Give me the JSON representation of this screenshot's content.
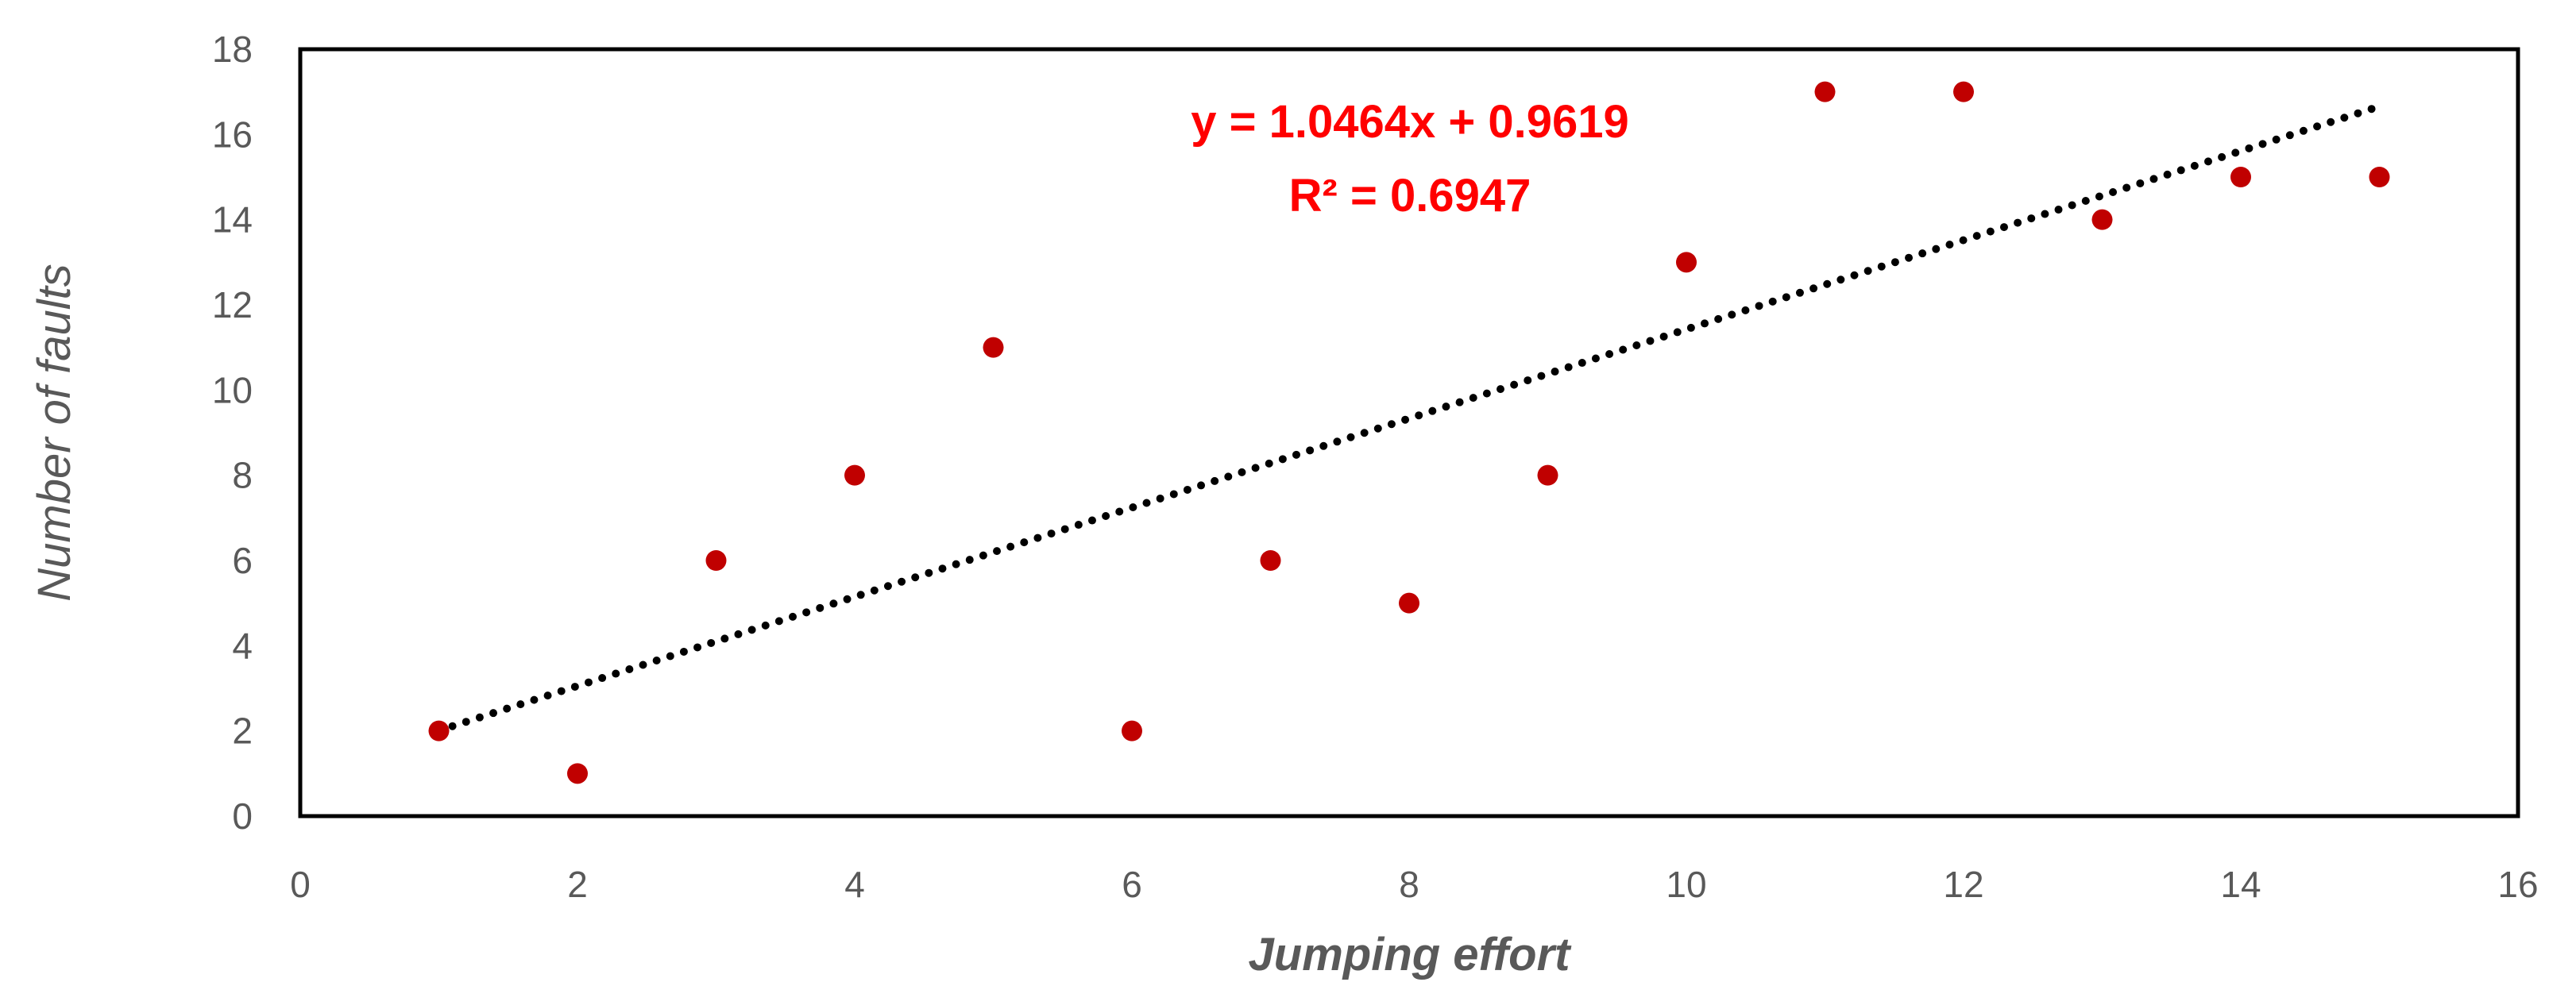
{
  "chart_data": {
    "type": "scatter",
    "title": "",
    "xlabel": "Jumping effort",
    "ylabel": "Number of faults",
    "xlim": [
      0,
      16
    ],
    "ylim": [
      0,
      18
    ],
    "xticks": [
      0,
      2,
      4,
      6,
      8,
      10,
      12,
      14,
      16
    ],
    "yticks": [
      0,
      2,
      4,
      6,
      8,
      10,
      12,
      14,
      16,
      18
    ],
    "grid": false,
    "series": [
      {
        "x": [
          1,
          2,
          3,
          4,
          5,
          6,
          7,
          8,
          9,
          10,
          11,
          12,
          13,
          14,
          15
        ],
        "y": [
          2,
          1,
          6,
          8,
          11,
          2,
          6,
          5,
          8,
          13,
          17,
          17,
          14,
          15,
          15
        ],
        "color": "#c00000"
      }
    ],
    "trendline": {
      "type": "linear",
      "slope": 1.0464,
      "intercept": 0.9619,
      "x_range": [
        1,
        15
      ],
      "style": "dotted",
      "color": "#000000"
    },
    "annotations": {
      "equation": "y = 1.0464x + 0.9619",
      "r_squared": "R² = 0.6947",
      "color": "#ff0000"
    }
  }
}
